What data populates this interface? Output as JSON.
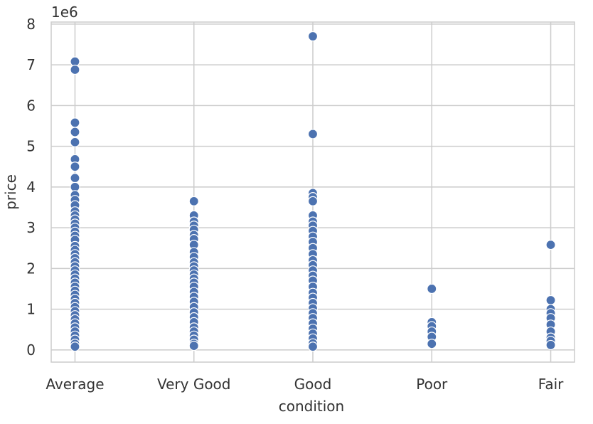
{
  "chart_data": {
    "type": "scatter",
    "xlabel": "condition",
    "ylabel": "price",
    "y_offset_label": "1e6",
    "categories": [
      "Average",
      "Very Good",
      "Good",
      "Poor",
      "Fair"
    ],
    "yticks": [
      0,
      1,
      2,
      3,
      4,
      5,
      6,
      7,
      8
    ],
    "yticks_text": [
      "0",
      "1",
      "2",
      "3",
      "4",
      "5",
      "6",
      "7",
      "8"
    ],
    "ylim": [
      -0.3,
      8.05
    ],
    "grid": true,
    "marker_color": "#4c72b0",
    "marker_edge_color": "#ffffff",
    "plot_background": "#ffffff",
    "grid_color": "#cccccc",
    "series": [
      {
        "values": [
          [
            0,
            7.08
          ],
          [
            0,
            6.88
          ],
          [
            0,
            5.58
          ],
          [
            0,
            5.35
          ],
          [
            0,
            5.1
          ],
          [
            0,
            4.68
          ],
          [
            0,
            4.5
          ],
          [
            0,
            4.22
          ],
          [
            0,
            4.0
          ],
          [
            0,
            3.8
          ],
          [
            0,
            3.68
          ],
          [
            0,
            3.55
          ],
          [
            0,
            3.4
          ],
          [
            0,
            3.3
          ],
          [
            0,
            3.2
          ],
          [
            0,
            3.1
          ],
          [
            0,
            3.0
          ],
          [
            0,
            2.9
          ],
          [
            0,
            2.8
          ],
          [
            0,
            2.7
          ],
          [
            0,
            2.55
          ],
          [
            0,
            2.45
          ],
          [
            0,
            2.35
          ],
          [
            0,
            2.25
          ],
          [
            0,
            2.15
          ],
          [
            0,
            2.05
          ],
          [
            0,
            1.95
          ],
          [
            0,
            1.85
          ],
          [
            0,
            1.75
          ],
          [
            0,
            1.65
          ],
          [
            0,
            1.55
          ],
          [
            0,
            1.45
          ],
          [
            0,
            1.35
          ],
          [
            0,
            1.25
          ],
          [
            0,
            1.15
          ],
          [
            0,
            1.05
          ],
          [
            0,
            0.95
          ],
          [
            0,
            0.85
          ],
          [
            0,
            0.75
          ],
          [
            0,
            0.65
          ],
          [
            0,
            0.55
          ],
          [
            0,
            0.45
          ],
          [
            0,
            0.35
          ],
          [
            0,
            0.25
          ],
          [
            0,
            0.15
          ],
          [
            0,
            0.08
          ],
          [
            1,
            3.65
          ],
          [
            1,
            3.3
          ],
          [
            1,
            3.15
          ],
          [
            1,
            3.05
          ],
          [
            1,
            2.95
          ],
          [
            1,
            2.82
          ],
          [
            1,
            2.72
          ],
          [
            1,
            2.58
          ],
          [
            1,
            2.4
          ],
          [
            1,
            2.28
          ],
          [
            1,
            2.15
          ],
          [
            1,
            2.05
          ],
          [
            1,
            1.95
          ],
          [
            1,
            1.85
          ],
          [
            1,
            1.75
          ],
          [
            1,
            1.65
          ],
          [
            1,
            1.55
          ],
          [
            1,
            1.42
          ],
          [
            1,
            1.3
          ],
          [
            1,
            1.18
          ],
          [
            1,
            1.05
          ],
          [
            1,
            0.92
          ],
          [
            1,
            0.8
          ],
          [
            1,
            0.68
          ],
          [
            1,
            0.55
          ],
          [
            1,
            0.45
          ],
          [
            1,
            0.35
          ],
          [
            1,
            0.25
          ],
          [
            1,
            0.15
          ],
          [
            1,
            0.1
          ],
          [
            2,
            7.7
          ],
          [
            2,
            5.3
          ],
          [
            2,
            3.85
          ],
          [
            2,
            3.75
          ],
          [
            2,
            3.65
          ],
          [
            2,
            3.3
          ],
          [
            2,
            3.15
          ],
          [
            2,
            3.05
          ],
          [
            2,
            2.92
          ],
          [
            2,
            2.78
          ],
          [
            2,
            2.65
          ],
          [
            2,
            2.5
          ],
          [
            2,
            2.35
          ],
          [
            2,
            2.2
          ],
          [
            2,
            2.08
          ],
          [
            2,
            1.95
          ],
          [
            2,
            1.82
          ],
          [
            2,
            1.7
          ],
          [
            2,
            1.55
          ],
          [
            2,
            1.4
          ],
          [
            2,
            1.28
          ],
          [
            2,
            1.15
          ],
          [
            2,
            1.02
          ],
          [
            2,
            0.9
          ],
          [
            2,
            0.78
          ],
          [
            2,
            0.65
          ],
          [
            2,
            0.52
          ],
          [
            2,
            0.4
          ],
          [
            2,
            0.28
          ],
          [
            2,
            0.16
          ],
          [
            2,
            0.08
          ],
          [
            3,
            1.5
          ],
          [
            3,
            0.68
          ],
          [
            3,
            0.58
          ],
          [
            3,
            0.45
          ],
          [
            3,
            0.32
          ],
          [
            3,
            0.15
          ],
          [
            4,
            2.58
          ],
          [
            4,
            1.22
          ],
          [
            4,
            1.0
          ],
          [
            4,
            0.9
          ],
          [
            4,
            0.78
          ],
          [
            4,
            0.62
          ],
          [
            4,
            0.45
          ],
          [
            4,
            0.3
          ],
          [
            4,
            0.22
          ],
          [
            4,
            0.12
          ]
        ]
      }
    ]
  }
}
